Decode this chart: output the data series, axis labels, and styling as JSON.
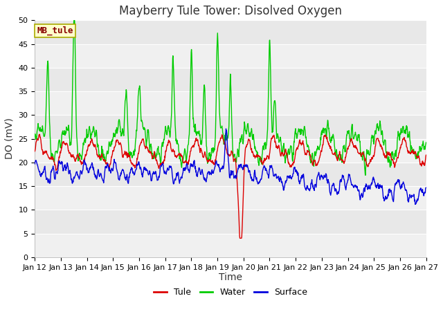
{
  "title": "Mayberry Tule Tower: Disolved Oxygen",
  "xlabel": "Time",
  "ylabel": "DO (mV)",
  "ylim": [
    0,
    50
  ],
  "yticks": [
    0,
    5,
    10,
    15,
    20,
    25,
    30,
    35,
    40,
    45,
    50
  ],
  "x_tick_labels": [
    "Jan 12",
    "Jan 13",
    "Jan 14",
    "Jan 15",
    "Jan 16",
    "Jan 17",
    "Jan 18",
    "Jan 19",
    "Jan 20",
    "Jan 21",
    "Jan 22",
    "Jan 23",
    "Jan 24",
    "Jan 25",
    "Jan 26",
    "Jan 27"
  ],
  "tule_color": "#dd0000",
  "water_color": "#00cc00",
  "surface_color": "#0000dd",
  "fig_bg_color": "#ffffff",
  "plot_bg_color": "#e8e8e8",
  "grid_color": "#f5f5f5",
  "legend_box_color": "#ffffcc",
  "legend_box_edge": "#aaaa00",
  "legend_label_color": "#880000",
  "annotation_text": "MB_tule",
  "annotation_fontsize": 9,
  "title_fontsize": 12,
  "axis_label_fontsize": 10,
  "tick_fontsize": 8,
  "legend_fontsize": 9,
  "line_width": 1.0
}
